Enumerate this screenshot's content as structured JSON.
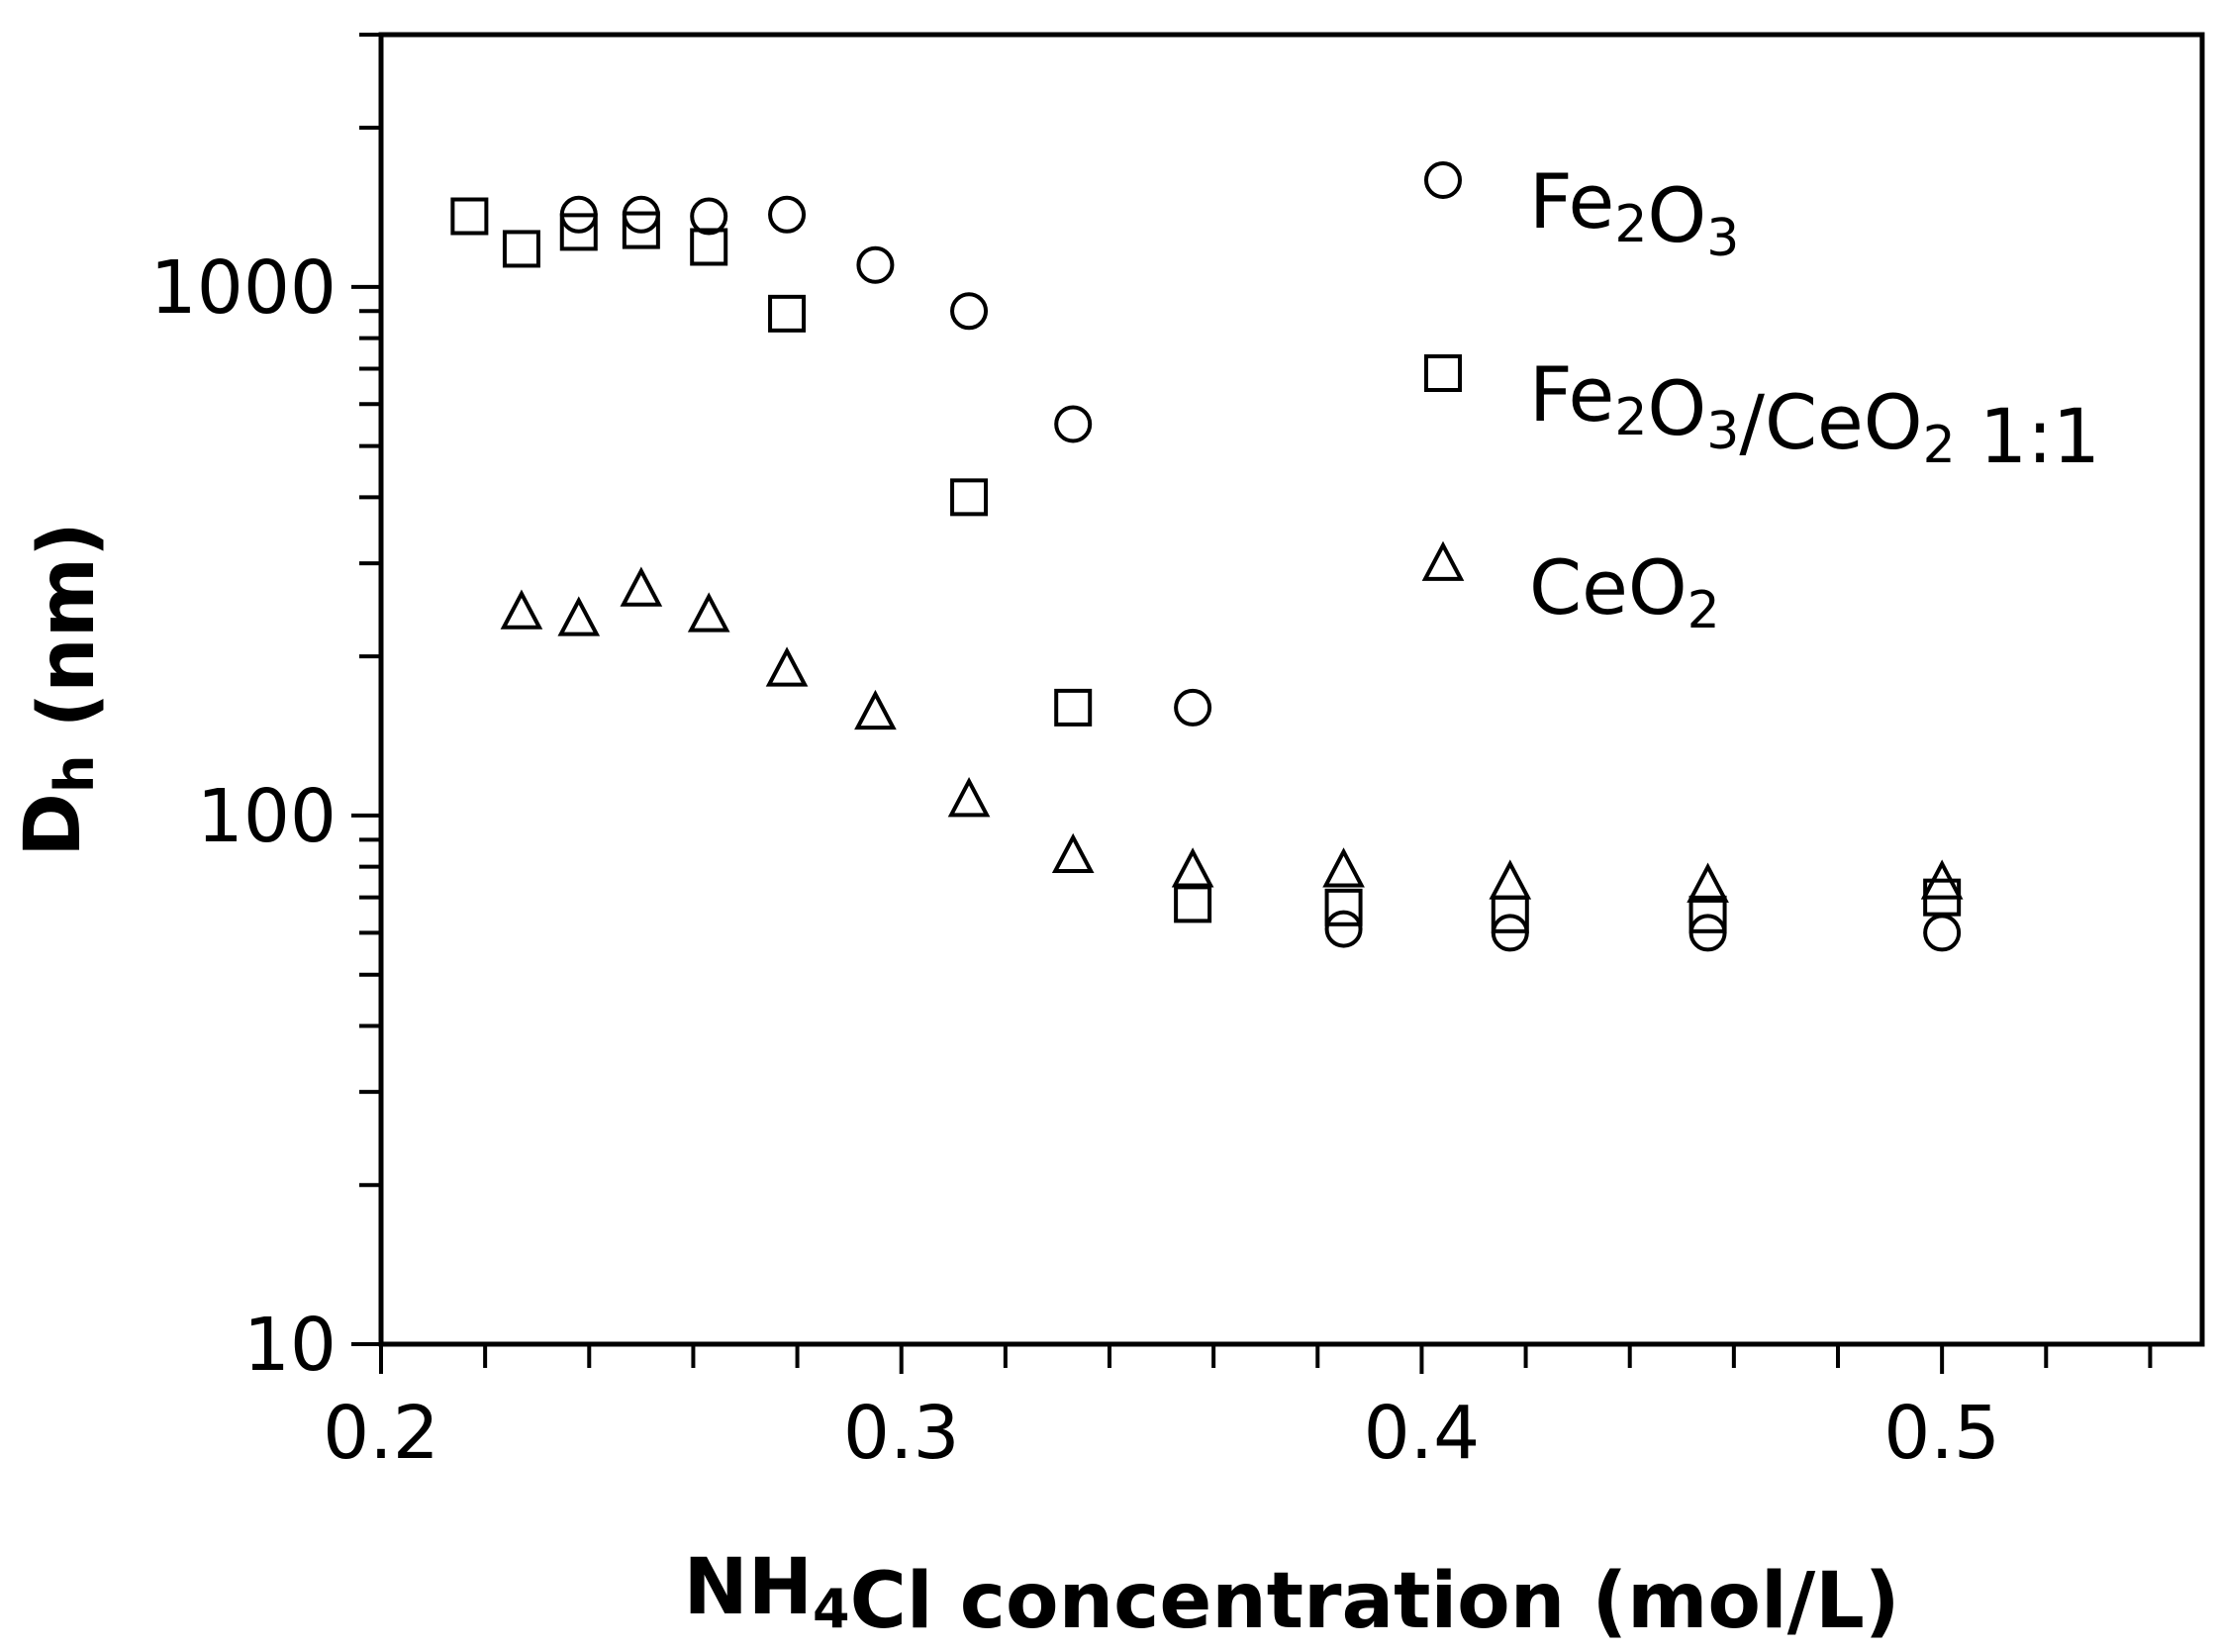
{
  "chart_data": {
    "type": "scatter",
    "xlabel": {
      "pre": "NH",
      "sub": "4",
      "post": "Cl concentration (mol/L)"
    },
    "ylabel": {
      "pre": "D",
      "sub": "h",
      "post": " (nm)"
    },
    "xlim": [
      0.2,
      0.55
    ],
    "ylim": [
      10,
      3000
    ],
    "y_scale": "log",
    "x_ticks": [
      0.2,
      0.3,
      0.4,
      0.5
    ],
    "x_tick_labels": [
      "0.2",
      "0.3",
      "0.4",
      "0.5"
    ],
    "x_minor_step": 0.02,
    "y_ticks": [
      10,
      100,
      1000
    ],
    "y_tick_labels": [
      "10",
      "100",
      "1000"
    ],
    "grid": false,
    "legend_position": "top-right",
    "series": [
      {
        "name": {
          "parts": [
            [
              "Fe",
              ""
            ],
            [
              "2",
              "sub"
            ],
            [
              "O",
              ""
            ],
            [
              "3",
              "sub"
            ]
          ]
        },
        "marker": "circle",
        "points": [
          [
            0.238,
            1370
          ],
          [
            0.25,
            1370
          ],
          [
            0.263,
            1360
          ],
          [
            0.278,
            1370
          ],
          [
            0.295,
            1100
          ],
          [
            0.313,
            900
          ],
          [
            0.333,
            550
          ],
          [
            0.356,
            160
          ],
          [
            0.385,
            61
          ],
          [
            0.417,
            60
          ],
          [
            0.455,
            60
          ],
          [
            0.5,
            60
          ]
        ]
      },
      {
        "name": {
          "parts": [
            [
              "Fe",
              ""
            ],
            [
              "2",
              "sub"
            ],
            [
              "O",
              ""
            ],
            [
              "3",
              "sub"
            ],
            [
              "/CeO",
              ""
            ],
            [
              "2",
              "sub"
            ],
            [
              " 1:1",
              ""
            ]
          ]
        },
        "marker": "square",
        "points": [
          [
            0.217,
            1360
          ],
          [
            0.227,
            1180
          ],
          [
            0.238,
            1270
          ],
          [
            0.25,
            1280
          ],
          [
            0.263,
            1190
          ],
          [
            0.278,
            890
          ],
          [
            0.313,
            400
          ],
          [
            0.333,
            160
          ],
          [
            0.356,
            68
          ],
          [
            0.385,
            67
          ],
          [
            0.417,
            65
          ],
          [
            0.455,
            65
          ],
          [
            0.5,
            70
          ]
        ]
      },
      {
        "name": {
          "parts": [
            [
              "CeO",
              ""
            ],
            [
              "2",
              "sub"
            ]
          ]
        },
        "marker": "triangle",
        "points": [
          [
            0.227,
            240
          ],
          [
            0.238,
            233
          ],
          [
            0.25,
            265
          ],
          [
            0.263,
            237
          ],
          [
            0.278,
            187
          ],
          [
            0.295,
            155
          ],
          [
            0.313,
            106
          ],
          [
            0.333,
            83
          ],
          [
            0.356,
            78
          ],
          [
            0.385,
            78
          ],
          [
            0.417,
            74
          ],
          [
            0.455,
            73
          ],
          [
            0.5,
            74
          ]
        ]
      }
    ]
  }
}
